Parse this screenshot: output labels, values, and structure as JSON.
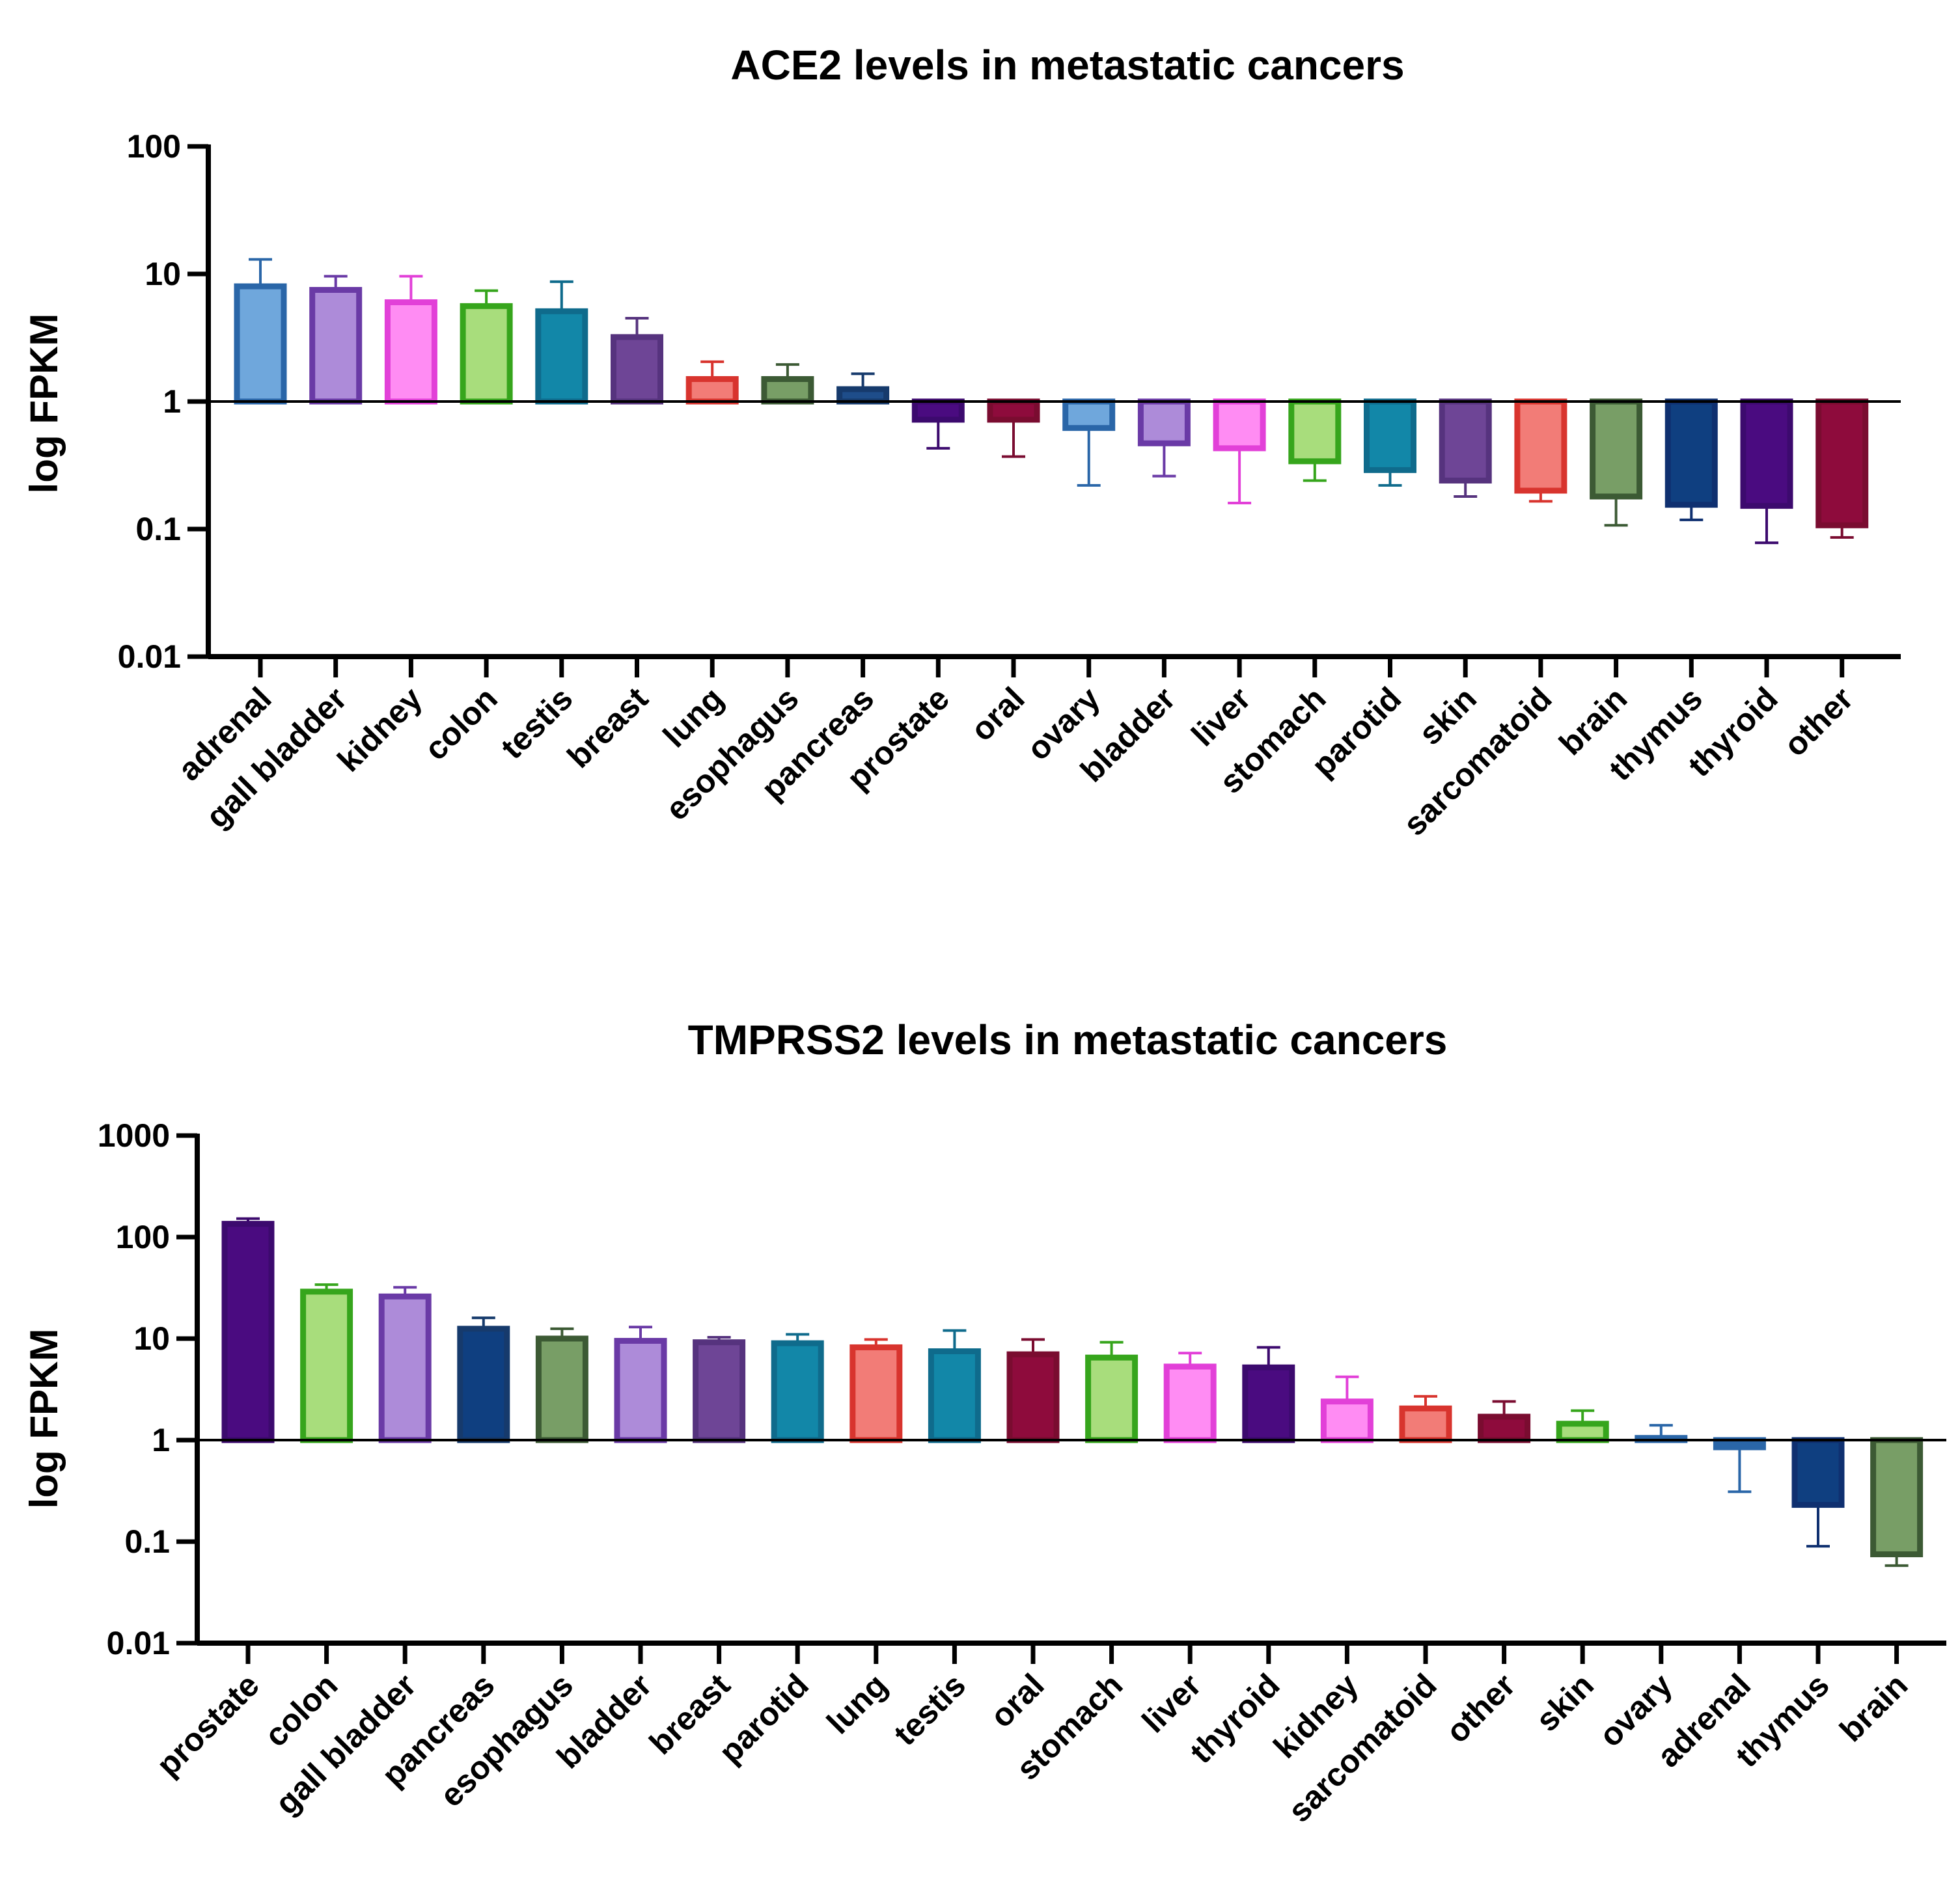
{
  "chart_data": [
    {
      "type": "bar",
      "title": "ACE2 levels in metastatic cancers",
      "ylabel": "log FPKM",
      "xlabel": "",
      "yscale": "log",
      "ylim": [
        0.01,
        100
      ],
      "baseline": 1,
      "yticks": [
        0.01,
        0.1,
        1,
        10,
        100
      ],
      "ytick_labels": [
        "0.01",
        "0.1",
        "1",
        "10",
        "100"
      ],
      "categories": [
        "adrenal",
        "gall bladder",
        "kidney",
        "colon",
        "testis",
        "breast",
        "lung",
        "esophagus",
        "pancreas",
        "prostate",
        "oral",
        "ovary",
        "bladder",
        "liver",
        "stomach",
        "parotid",
        "skin",
        "sarcomatoid",
        "brain",
        "thymus",
        "thyroid",
        "other"
      ],
      "values": [
        8.0,
        7.5,
        6.0,
        5.6,
        5.1,
        3.2,
        1.5,
        1.5,
        1.25,
        0.72,
        0.72,
        0.62,
        0.47,
        0.43,
        0.34,
        0.29,
        0.24,
        0.2,
        0.18,
        0.155,
        0.152,
        0.107
      ],
      "error_ends": [
        13.0,
        9.6,
        9.6,
        7.4,
        8.7,
        4.5,
        2.05,
        1.95,
        1.65,
        0.43,
        0.37,
        0.22,
        0.26,
        0.16,
        0.24,
        0.22,
        0.18,
        0.165,
        0.107,
        0.118,
        0.078,
        0.086
      ],
      "colors": [
        "#2a66a8",
        "#6a3aa6",
        "#e240d8",
        "#36a51c",
        "#0f6b8c",
        "#56337e",
        "#d8342e",
        "#3c5a34",
        "#163a6c",
        "#3c0a6e",
        "#7a0c30",
        "#2a66a8",
        "#6a3aa6",
        "#e240d8",
        "#36a51c",
        "#0f6b8c",
        "#56337e",
        "#d8342e",
        "#3c5a34",
        "#0f3070",
        "#3c0a6e",
        "#7a0c30"
      ],
      "fills": [
        "#6fa7dc",
        "#ad8bd9",
        "#ff8cf3",
        "#a8dd7c",
        "#1287a8",
        "#6e4596",
        "#f27c77",
        "#789e66",
        "#1e4d8a",
        "#4a0b80",
        "#8e0b3c",
        "#6fa7dc",
        "#ad8bd9",
        "#ff8cf3",
        "#a8dd7c",
        "#1287a8",
        "#6e4596",
        "#f27c77",
        "#789e66",
        "#0f3f80",
        "#4a0b80",
        "#8e0b3c"
      ]
    },
    {
      "type": "bar",
      "title": "TMPRSS2 levels in metastatic cancers",
      "ylabel": "log FPKM",
      "xlabel": "",
      "yscale": "log",
      "ylim": [
        0.01,
        1000
      ],
      "baseline": 1,
      "yticks": [
        0.01,
        0.1,
        1,
        10,
        100,
        1000
      ],
      "ytick_labels": [
        "0.01",
        "0.1",
        "1",
        "10",
        "100",
        "1000"
      ],
      "categories": [
        "prostate",
        "colon",
        "gall bladder",
        "pancreas",
        "esophagus",
        "bladder",
        "breast",
        "parotid",
        "lung",
        "testis",
        "oral",
        "stomach",
        "liver",
        "thyroid",
        "kidney",
        "sarcomatoid",
        "other",
        "skin",
        "ovary",
        "adrenal",
        "thymus",
        "brain"
      ],
      "values": [
        135,
        29,
        26,
        12.5,
        10,
        9.5,
        9.2,
        9.0,
        8.2,
        7.5,
        7.0,
        6.5,
        5.3,
        5.2,
        2.4,
        2.05,
        1.7,
        1.45,
        1.05,
        0.85,
        0.23,
        0.075
      ],
      "error_ends": [
        152,
        34,
        32,
        16,
        12.5,
        13,
        10.3,
        11,
        9.8,
        12,
        9.8,
        9.2,
        7.2,
        8.2,
        4.2,
        2.7,
        2.4,
        1.95,
        1.4,
        0.31,
        0.09,
        0.058
      ],
      "colors": [
        "#3c0a6e",
        "#36a51c",
        "#6a3aa6",
        "#163a6c",
        "#3c5a34",
        "#6a3aa6",
        "#56337e",
        "#0f6b8c",
        "#d8342e",
        "#0f6b8c",
        "#7a0c30",
        "#36a51c",
        "#e240d8",
        "#3c0a6e",
        "#e240d8",
        "#d8342e",
        "#7a0c30",
        "#36a51c",
        "#2a66a8",
        "#2a66a8",
        "#0f3070",
        "#3c5a34"
      ],
      "fills": [
        "#4a0b80",
        "#a8dd7c",
        "#ad8bd9",
        "#0f3f80",
        "#789e66",
        "#ad8bd9",
        "#6e4596",
        "#1287a8",
        "#f27c77",
        "#1287a8",
        "#8e0b3c",
        "#a8dd7c",
        "#ff8cf3",
        "#4a0b80",
        "#ff8cf3",
        "#f27c77",
        "#8e0b3c",
        "#a8dd7c",
        "#6fa7dc",
        "#2a66a8",
        "#0f3f80",
        "#789e66"
      ]
    }
  ]
}
